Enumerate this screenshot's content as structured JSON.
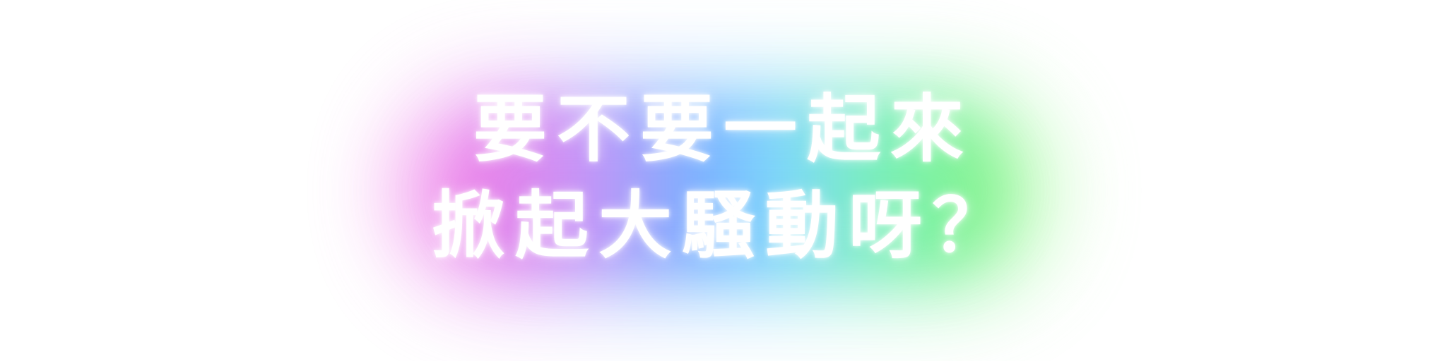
{
  "text": {
    "line1": "要不要一起來",
    "line2": "掀起大騷動呀？"
  },
  "colors": {
    "background": "#ffffff",
    "text": "#ffffff",
    "glow_gradient": [
      "#f47fe6",
      "#e59af5",
      "#8fb6ff",
      "#7fd3ff",
      "#88f0c8",
      "#8ff59a"
    ]
  }
}
